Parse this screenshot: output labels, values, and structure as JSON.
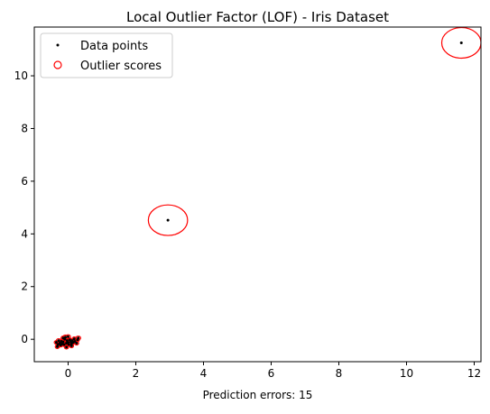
{
  "chart_data": {
    "type": "scatter",
    "title": "Local Outlier Factor (LOF) - Iris Dataset",
    "xlabel": "Prediction errors: 15",
    "ylabel": "",
    "xlim": [
      -1.0,
      12.2
    ],
    "ylim": [
      -0.85,
      11.85
    ],
    "x_ticks": [
      0,
      2,
      4,
      6,
      8,
      10,
      12
    ],
    "y_ticks": [
      0,
      2,
      4,
      6,
      8,
      10
    ],
    "grid": false,
    "legend_position": "upper-left",
    "series": [
      {
        "name": "Data points",
        "marker": "dot",
        "color": "#000000",
        "points": [
          [
            -0.35,
            -0.12
          ],
          [
            -0.3,
            -0.2
          ],
          [
            -0.28,
            -0.05
          ],
          [
            -0.25,
            -0.15
          ],
          [
            -0.22,
            -0.22
          ],
          [
            -0.2,
            -0.08
          ],
          [
            -0.18,
            -0.18
          ],
          [
            -0.15,
            -0.1
          ],
          [
            -0.12,
            -0.2
          ],
          [
            -0.1,
            0.0
          ],
          [
            -0.08,
            0.08
          ],
          [
            -0.05,
            -0.15
          ],
          [
            -0.03,
            -0.05
          ],
          [
            0.0,
            -0.12
          ],
          [
            0.02,
            -0.2
          ],
          [
            0.05,
            -0.02
          ],
          [
            0.08,
            -0.1
          ],
          [
            0.1,
            -0.18
          ],
          [
            0.12,
            -0.05
          ],
          [
            0.15,
            -0.12
          ],
          [
            0.18,
            0.02
          ],
          [
            0.2,
            -0.08
          ],
          [
            0.25,
            -0.15
          ],
          [
            0.28,
            -0.02
          ],
          [
            0.3,
            0.05
          ],
          [
            -0.32,
            -0.28
          ],
          [
            -0.15,
            0.05
          ],
          [
            0.0,
            0.1
          ],
          [
            -0.05,
            -0.3
          ],
          [
            0.1,
            -0.25
          ],
          [
            2.95,
            4.52
          ],
          [
            11.62,
            11.25
          ]
        ]
      },
      {
        "name": "Outlier scores",
        "marker": "circle",
        "color": "#ff0000",
        "circles": [
          [
            -0.35,
            -0.12,
            0.06
          ],
          [
            -0.3,
            -0.2,
            0.05
          ],
          [
            -0.28,
            -0.05,
            0.07
          ],
          [
            -0.25,
            -0.15,
            0.05
          ],
          [
            -0.22,
            -0.22,
            0.06
          ],
          [
            -0.2,
            -0.08,
            0.05
          ],
          [
            -0.18,
            -0.18,
            0.06
          ],
          [
            -0.15,
            -0.1,
            0.05
          ],
          [
            -0.12,
            -0.2,
            0.05
          ],
          [
            -0.1,
            0.0,
            0.07
          ],
          [
            -0.08,
            0.08,
            0.08
          ],
          [
            -0.05,
            -0.15,
            0.05
          ],
          [
            -0.03,
            -0.05,
            0.06
          ],
          [
            0.0,
            -0.12,
            0.05
          ],
          [
            0.02,
            -0.2,
            0.06
          ],
          [
            0.05,
            -0.02,
            0.05
          ],
          [
            0.08,
            -0.1,
            0.05
          ],
          [
            0.1,
            -0.18,
            0.06
          ],
          [
            0.12,
            -0.05,
            0.05
          ],
          [
            0.15,
            -0.12,
            0.05
          ],
          [
            0.18,
            0.02,
            0.06
          ],
          [
            0.2,
            -0.08,
            0.05
          ],
          [
            0.25,
            -0.15,
            0.06
          ],
          [
            0.28,
            -0.02,
            0.05
          ],
          [
            0.3,
            0.05,
            0.07
          ],
          [
            -0.32,
            -0.28,
            0.06
          ],
          [
            -0.15,
            0.05,
            0.06
          ],
          [
            0.0,
            0.1,
            0.07
          ],
          [
            -0.05,
            -0.3,
            0.06
          ],
          [
            0.1,
            -0.25,
            0.06
          ],
          [
            2.95,
            4.52,
            0.58
          ],
          [
            11.62,
            11.25,
            0.58
          ]
        ]
      }
    ]
  }
}
